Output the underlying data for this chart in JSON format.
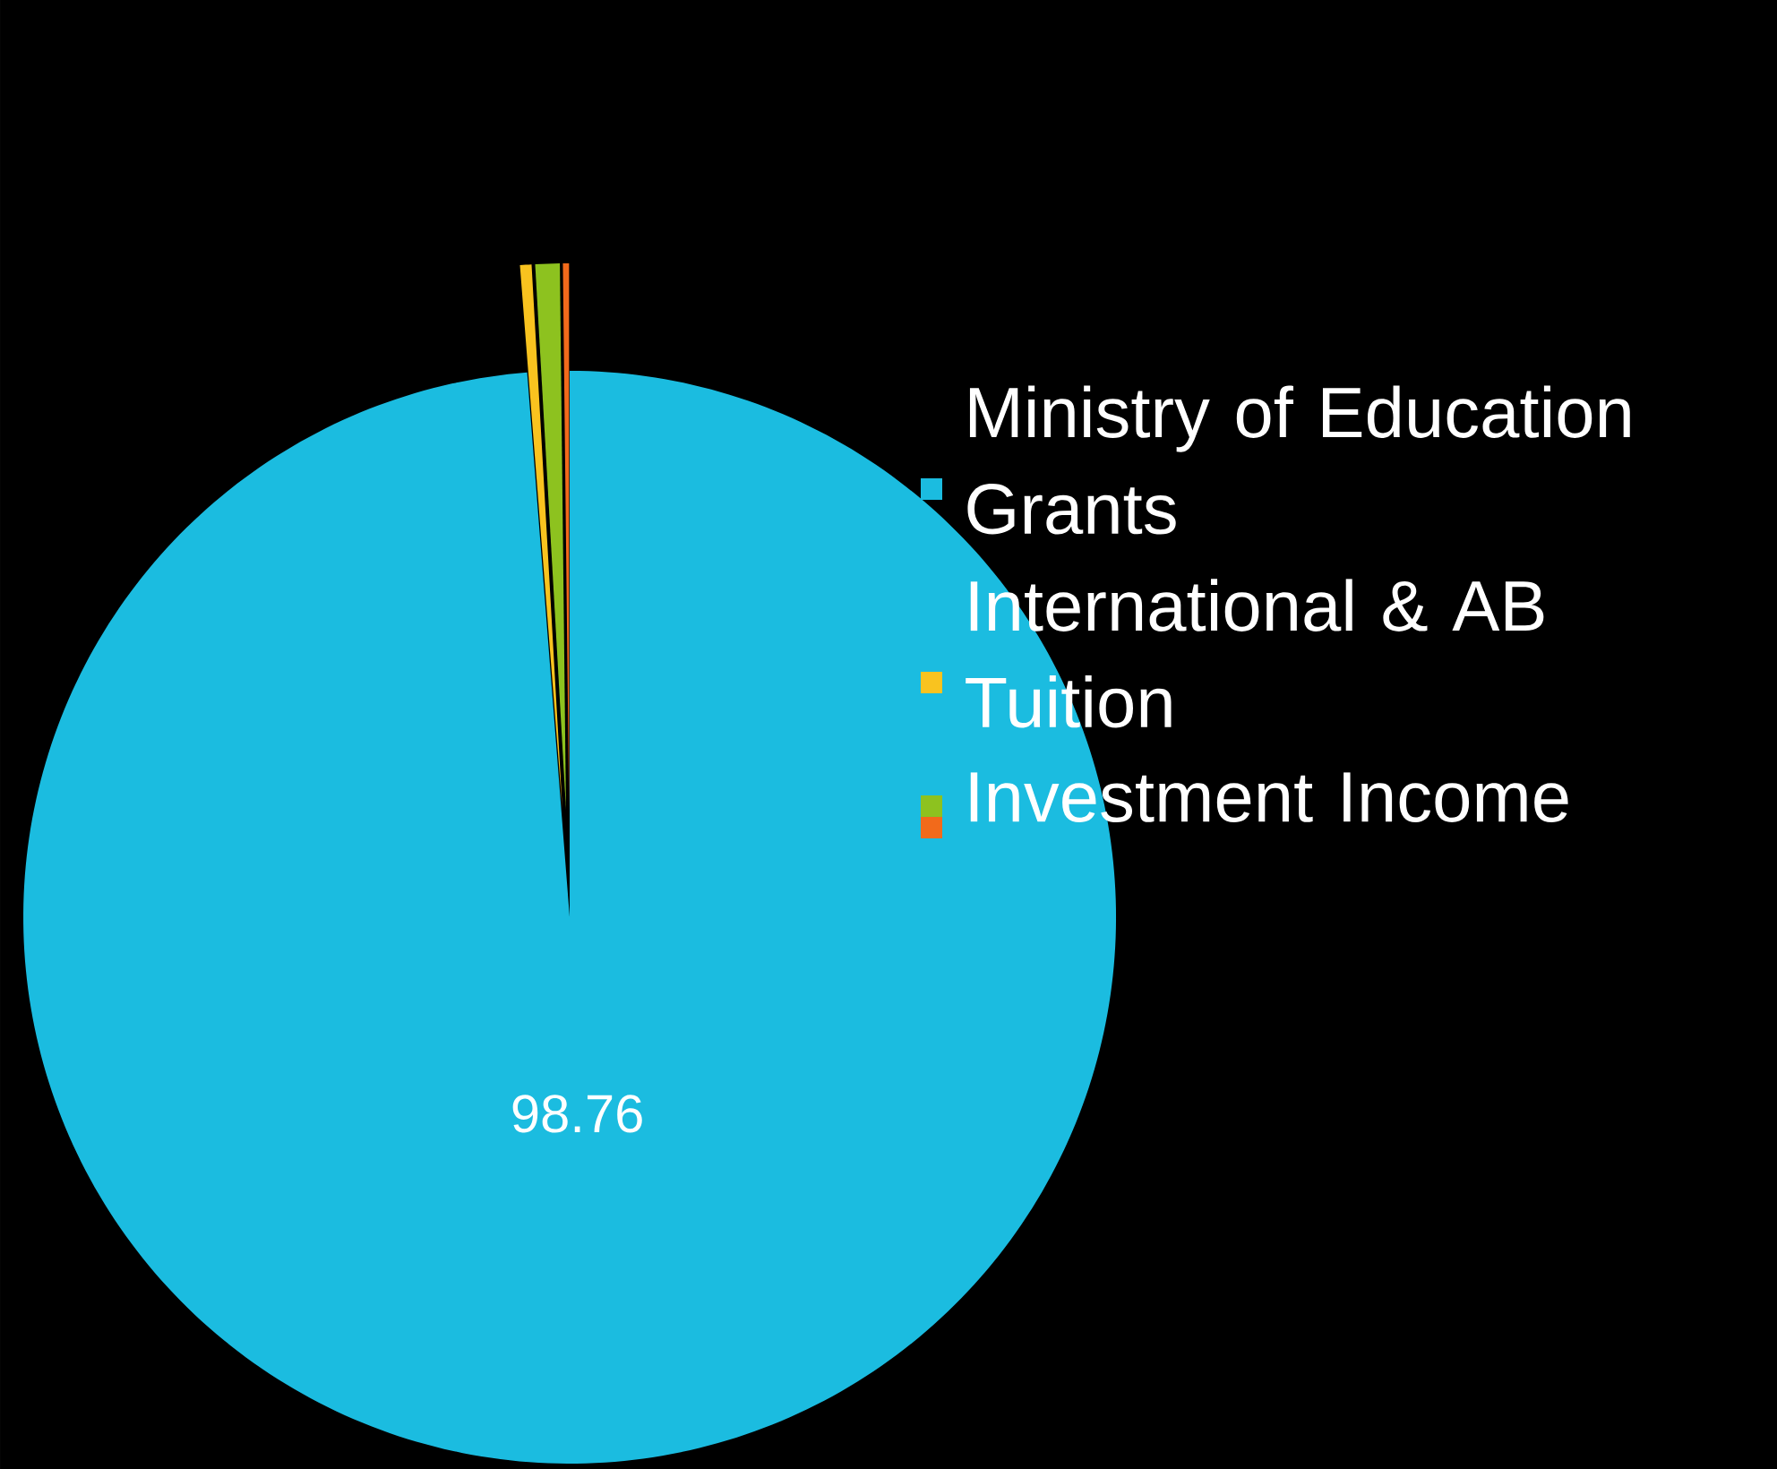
{
  "chart_data": {
    "type": "pie",
    "categories": [
      "Ministry of Education Grants",
      "International & AB Tuition",
      null,
      "Investment Income"
    ],
    "values": [
      98.76,
      0.34,
      0.72,
      0.18
    ],
    "colors": [
      "#1bbce0",
      "#f9c31f",
      "#8dc21f",
      "#f26a1b"
    ],
    "value_labels": [
      "98.76",
      null,
      null,
      null
    ],
    "legend": "right"
  }
}
